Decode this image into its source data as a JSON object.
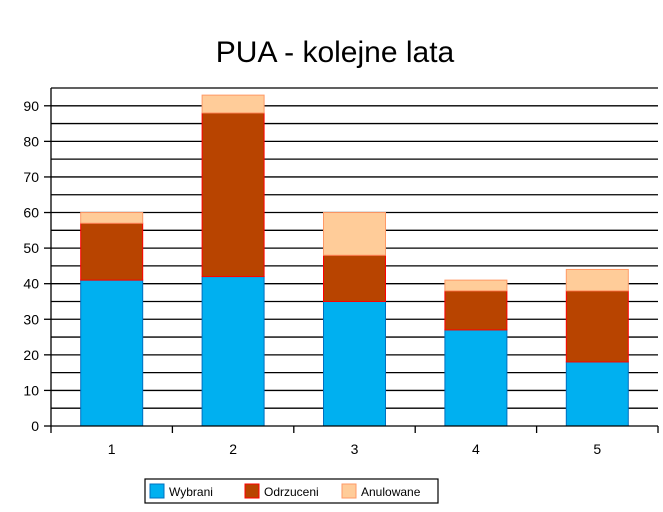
{
  "chart_data": {
    "type": "bar",
    "stacked": true,
    "title": "PUA - kolejne lata",
    "xlabel": "",
    "ylabel": "",
    "categories": [
      "1",
      "2",
      "3",
      "4",
      "5"
    ],
    "ylim": [
      0,
      95
    ],
    "yticks": [
      0,
      10,
      20,
      30,
      40,
      50,
      60,
      70,
      80,
      90
    ],
    "grid": true,
    "legend_position": "bottom",
    "series": [
      {
        "name": "Wybrani",
        "color": "#00b0f0",
        "values": [
          41,
          42,
          35,
          27,
          18
        ]
      },
      {
        "name": "Odrzuceni",
        "color": "#b84400",
        "values": [
          16,
          46,
          13,
          11,
          20
        ]
      },
      {
        "name": "Anulowane",
        "color": "#ffcc99",
        "values": [
          3,
          5,
          12,
          3,
          6
        ]
      }
    ]
  }
}
